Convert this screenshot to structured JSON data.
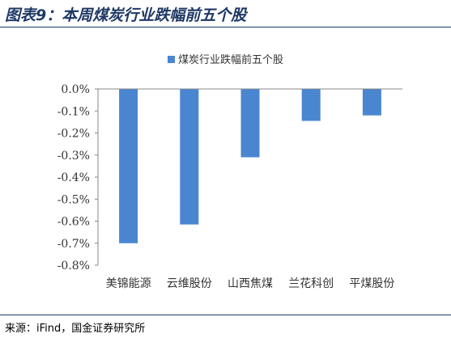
{
  "header": {
    "title": "图表9：本周煤炭行业跌幅前五个股"
  },
  "footer": {
    "source": "来源：iFind，国金证券研究所"
  },
  "chart_data": {
    "type": "bar",
    "categories": [
      "美锦能源",
      "云维股份",
      "山西焦煤",
      "兰花科创",
      "平煤股份"
    ],
    "series": [
      {
        "name": "煤炭行业跌幅前五个股",
        "values": [
          -0.7,
          -0.615,
          -0.31,
          -0.145,
          -0.12
        ],
        "color": "#4a86d0"
      }
    ],
    "ylim": [
      -0.8,
      0.0
    ],
    "yticks": [
      0.0,
      -0.1,
      -0.2,
      -0.3,
      -0.4,
      -0.5,
      -0.6,
      -0.7,
      -0.8
    ],
    "ytick_labels": [
      "0.0%",
      "-0.1%",
      "-0.2%",
      "-0.3%",
      "-0.4%",
      "-0.5%",
      "-0.6%",
      "-0.7%",
      "-0.8%"
    ],
    "legend_position": "top",
    "grid": false,
    "xlabel": "",
    "ylabel": ""
  }
}
